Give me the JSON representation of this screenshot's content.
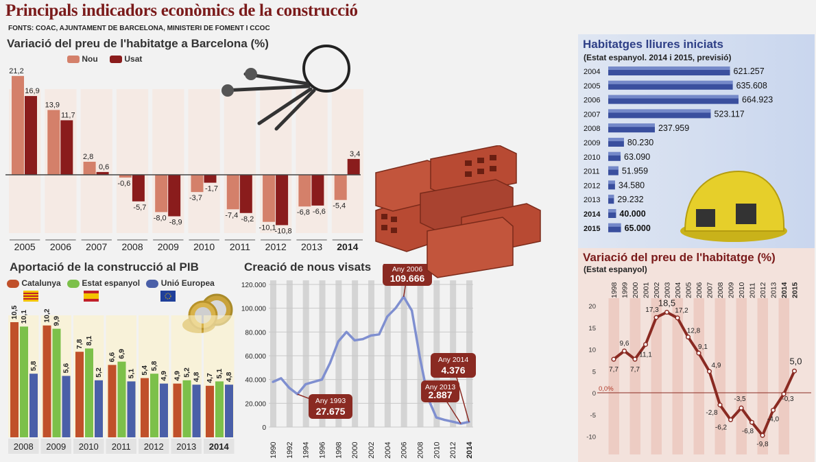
{
  "header": {
    "title": "Principals indicadors econòmics de la construcció",
    "sources": "FONTS: COAC, AJUNTAMENT DE BARCELONA, MINISTERI DE FOMENT I CCOC"
  },
  "colors": {
    "nou": "#d4806a",
    "usat": "#8a1c1c",
    "catalunya": "#c0502a",
    "espanya": "#7cc04a",
    "ue": "#4a5fa8",
    "line_blue": "#7f8fd0",
    "line_red": "#8a2a22"
  },
  "chart_data": [
    {
      "id": "preu_barcelona",
      "type": "bar",
      "title": "Variació del preu de l'habitatge a Barcelona (%)",
      "categories": [
        "2005",
        "2006",
        "2007",
        "2008",
        "2009",
        "2010",
        "2011",
        "2012",
        "2013",
        "2014"
      ],
      "series": [
        {
          "name": "Nou",
          "values": [
            21.2,
            13.9,
            2.8,
            -0.6,
            -8.0,
            -3.7,
            -7.4,
            -10.1,
            -6.8,
            -5.4
          ],
          "labels": [
            "21,2",
            "13,9",
            "2,8",
            "-0,6",
            "-8,0",
            "-3,7",
            "-7,4",
            "-10,1",
            "-6,8",
            "-5,4"
          ]
        },
        {
          "name": "Usat",
          "values": [
            16.9,
            11.7,
            0.6,
            -5.7,
            -8.9,
            -1.7,
            -8.2,
            -10.8,
            -6.6,
            3.4
          ],
          "labels": [
            "16,9",
            "11,7",
            "0,6",
            "-5,7",
            "-8,9",
            "-1,7",
            "-8,2",
            "-10,8",
            "-6,6",
            "3,4"
          ]
        }
      ]
    },
    {
      "id": "aportacio_pib",
      "type": "bar",
      "title": "Aportació de la construcció al PIB",
      "categories": [
        "2008",
        "2009",
        "2010",
        "2011",
        "2012",
        "2013",
        "2014"
      ],
      "series": [
        {
          "name": "Catalunya",
          "values": [
            10.5,
            10.2,
            7.8,
            6.6,
            5.4,
            4.9,
            4.7
          ],
          "labels": [
            "10,5",
            "10,2",
            "7,8",
            "6,6",
            "5,4",
            "4,9",
            "4,7"
          ]
        },
        {
          "name": "Estat espanyol",
          "values": [
            10.1,
            9.9,
            8.1,
            6.9,
            5.8,
            5.2,
            5.1
          ],
          "labels": [
            "10,1",
            "9,9",
            "8,1",
            "6,9",
            "5,8",
            "5,2",
            "5,1"
          ]
        },
        {
          "name": "Unió Europea",
          "values": [
            5.8,
            5.6,
            5.2,
            5.1,
            4.9,
            4.8,
            4.8
          ],
          "labels": [
            "5,8",
            "5,6",
            "5,2",
            "5,1",
            "4,9",
            "4,8",
            "4,8"
          ]
        }
      ]
    },
    {
      "id": "visats",
      "type": "line",
      "title": "Creació de nous visats",
      "x": [
        1990,
        1991,
        1992,
        1993,
        1994,
        1995,
        1996,
        1997,
        1998,
        1999,
        2000,
        2001,
        2002,
        2003,
        2004,
        2005,
        2006,
        2007,
        2008,
        2009,
        2010,
        2011,
        2012,
        2013,
        2014
      ],
      "y": [
        38000,
        41000,
        33000,
        27675,
        36000,
        38000,
        40000,
        54000,
        72000,
        80000,
        73000,
        74000,
        77000,
        78000,
        93000,
        100000,
        109666,
        98000,
        58000,
        24000,
        8000,
        6000,
        4500,
        2887,
        4376
      ],
      "xticks": [
        "1990",
        "1992",
        "1994",
        "1996",
        "1998",
        "2000",
        "2002",
        "2004",
        "2006",
        "2008",
        "2010",
        "2012",
        "2014"
      ],
      "yticks": [
        "0",
        "20.000",
        "40.000",
        "60.000",
        "80.000",
        "100.000",
        "120.000"
      ],
      "ylim": [
        0,
        120000
      ],
      "annotations": [
        {
          "year_label": "Any 1993",
          "value": "27.675"
        },
        {
          "year_label": "Any 2006",
          "value": "109.666"
        },
        {
          "year_label": "Any 2013",
          "value": "2.887"
        },
        {
          "year_label": "Any 2014",
          "value": "4.376"
        }
      ]
    },
    {
      "id": "habitatges",
      "type": "bar",
      "title": "Habitatges lliures iniciats",
      "subtitle": "(Estat espanyol. 2014 i 2015, previsió)",
      "categories": [
        "2004",
        "2005",
        "2006",
        "2007",
        "2008",
        "2009",
        "2010",
        "2011",
        "2012",
        "2013",
        "2014",
        "2015"
      ],
      "values": [
        621257,
        635608,
        664923,
        523117,
        237959,
        80230,
        63090,
        51959,
        34580,
        29232,
        40000,
        65000
      ],
      "labels": [
        "621.257",
        "635.608",
        "664.923",
        "523.117",
        "237.959",
        "80.230",
        "63.090",
        "51.959",
        "34.580",
        "29.232",
        "40.000",
        "65.000"
      ]
    },
    {
      "id": "preu_estat",
      "type": "line",
      "title": "Variació del preu de l'habitatge (%)",
      "subtitle": "(Estat espanyol)",
      "x": [
        "1998",
        "1999",
        "2000",
        "2001",
        "2002",
        "2003",
        "2004",
        "2005",
        "2006",
        "2007",
        "2008",
        "2009",
        "2010",
        "2011",
        "2012",
        "2013",
        "2014",
        "2015"
      ],
      "y": [
        7.7,
        9.6,
        7.7,
        11.1,
        17.3,
        18.5,
        17.2,
        12.8,
        9.1,
        4.9,
        -2.8,
        -6.2,
        -3.5,
        -6.8,
        -9.8,
        -4.0,
        -0.3,
        5.0
      ],
      "labels": [
        "7,7",
        "9,6",
        "7,7",
        "11,1",
        "17,3",
        "18,5",
        "17,2",
        "12,8",
        "9,1",
        "4,9",
        "-2,8",
        "-6,2",
        "-3,5",
        "-6,8",
        "-9,8",
        "-4,0",
        "-0,3",
        "5,0"
      ],
      "yticks": [
        "20",
        "15",
        "10",
        "5",
        "0",
        "-5",
        "-10"
      ],
      "zero_label": "0,0%",
      "ylim": [
        -12,
        21
      ]
    }
  ]
}
